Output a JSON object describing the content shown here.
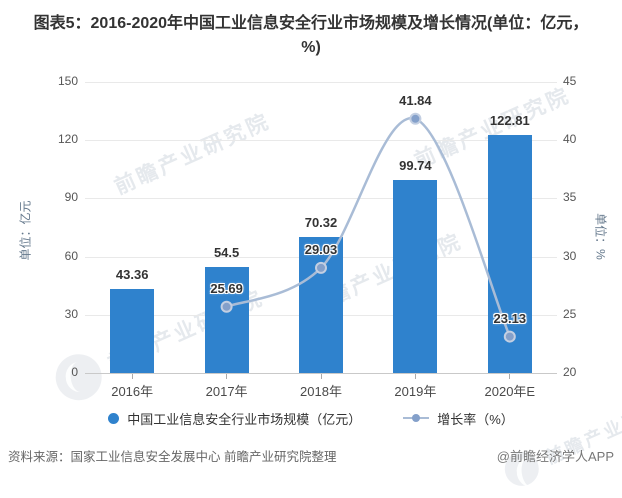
{
  "title": "图表5：2016-2020年中国工业信息安全行业市场规模及增长情况(单位：亿元，%)",
  "watermark_text": "前瞻产业研究院",
  "footer": {
    "source": "资料来源：国家工业信息安全发展中心 前瞻产业研究院整理",
    "credit": "@前瞻经济学人APP"
  },
  "colors": {
    "bar": "#2f82cd",
    "line": "#a9bcd6",
    "marker_fill": "#84a0ca",
    "marker_stroke": "#c3cfe2",
    "grid": "#e9e9e9",
    "axis": "#c9c9c9",
    "tick_text": "#555555",
    "axis_name_text": "#64788c",
    "label_text": "#333333"
  },
  "chart_data": {
    "type": "bar",
    "subtype": "bar+line combo, dual axis",
    "categories": [
      "2016年",
      "2017年",
      "2018年",
      "2019年",
      "2020年E"
    ],
    "series": [
      {
        "name": "中国工业信息安全行业市场规模（亿元）",
        "type": "bar",
        "axis": "left",
        "values": [
          43.36,
          54.5,
          70.32,
          99.74,
          122.81
        ]
      },
      {
        "name": "增长率（%）",
        "type": "line",
        "axis": "right",
        "values": [
          null,
          25.69,
          29.03,
          41.84,
          23.13
        ]
      }
    ],
    "left_axis": {
      "name": "单位：亿元",
      "min": 0,
      "max": 150,
      "ticks": [
        0,
        30,
        60,
        90,
        120,
        150
      ]
    },
    "right_axis": {
      "name": "单位：%",
      "min": 20,
      "max": 45,
      "ticks": [
        20,
        25,
        30,
        35,
        40,
        45
      ]
    },
    "legend_position": "bottom",
    "grid": true,
    "smooth_line": true
  }
}
